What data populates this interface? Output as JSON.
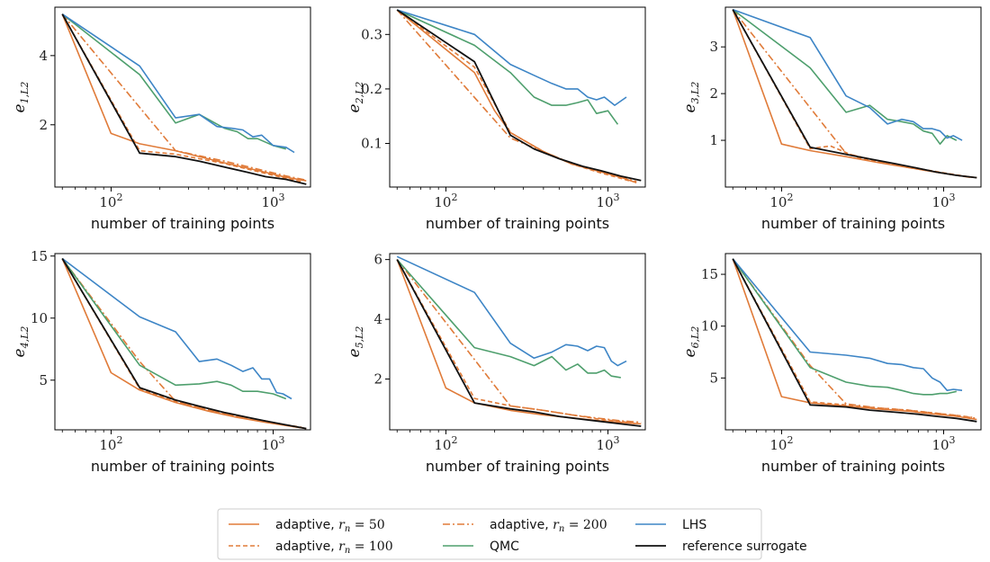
{
  "colors": {
    "adaptive": "#e07b39",
    "qmc": "#4e9f6d",
    "lhs": "#3d85c6",
    "ref": "#111111"
  },
  "legend": {
    "entries": [
      {
        "key": "a50",
        "label": "adaptive, ",
        "math": "r",
        "sub": "n",
        "eq": " = 50"
      },
      {
        "key": "a100",
        "label": "adaptive, ",
        "math": "r",
        "sub": "n",
        "eq": " = 100"
      },
      {
        "key": "a200",
        "label": "adaptive, ",
        "math": "r",
        "sub": "n",
        "eq": " = 200"
      },
      {
        "key": "qmc",
        "label": "QMC"
      },
      {
        "key": "lhs",
        "label": "LHS"
      },
      {
        "key": "ref",
        "label": "reference surrogate"
      }
    ]
  },
  "chart_data": [
    {
      "type": "line",
      "xscale": "log",
      "xlim": [
        45,
        1700
      ],
      "ylim": [
        0.2,
        5.4
      ],
      "xlabel": "number of training points",
      "ylabel_main": "e",
      "ylabel_sub": "1,L2",
      "xticks": [
        {
          "v": 100,
          "b": "10",
          "e": "2"
        },
        {
          "v": 1000,
          "b": "10",
          "e": "3"
        }
      ],
      "yticks": [
        2,
        4
      ],
      "series": [
        {
          "key": "a50",
          "x": [
            50,
            100,
            150,
            250,
            500,
            800,
            1200,
            1600
          ],
          "y": [
            5.2,
            1.75,
            1.45,
            1.25,
            0.9,
            0.68,
            0.48,
            0.38
          ]
        },
        {
          "key": "a100",
          "x": [
            50,
            150,
            250,
            500,
            800,
            1200,
            1500
          ],
          "y": [
            5.2,
            1.25,
            1.15,
            0.88,
            0.65,
            0.45,
            0.35
          ]
        },
        {
          "key": "a200",
          "x": [
            50,
            250,
            500,
            800,
            1200,
            1600
          ],
          "y": [
            5.2,
            1.25,
            0.95,
            0.72,
            0.52,
            0.4
          ]
        },
        {
          "key": "qmc",
          "x": [
            50,
            150,
            250,
            350,
            500,
            600,
            700,
            800,
            1000,
            1200
          ],
          "y": [
            5.2,
            3.45,
            2.05,
            2.3,
            1.9,
            1.8,
            1.6,
            1.6,
            1.4,
            1.3
          ]
        },
        {
          "key": "lhs",
          "x": [
            50,
            150,
            250,
            350,
            450,
            550,
            650,
            750,
            850,
            1000,
            1200,
            1350
          ],
          "y": [
            5.2,
            3.7,
            2.2,
            2.3,
            1.95,
            1.9,
            1.85,
            1.65,
            1.7,
            1.4,
            1.35,
            1.2
          ]
        },
        {
          "key": "ref",
          "x": [
            50,
            150,
            250,
            350,
            500,
            700,
            900,
            1200,
            1600
          ],
          "y": [
            5.2,
            1.18,
            1.08,
            0.95,
            0.78,
            0.62,
            0.5,
            0.42,
            0.28
          ]
        }
      ]
    },
    {
      "type": "line",
      "xscale": "log",
      "xlim": [
        45,
        1700
      ],
      "ylim": [
        0.02,
        0.35
      ],
      "xlabel": "number of training points",
      "ylabel_main": "e",
      "ylabel_sub": "2,L2",
      "xticks": [
        {
          "v": 100,
          "b": "10",
          "e": "2"
        },
        {
          "v": 1000,
          "b": "10",
          "e": "3"
        }
      ],
      "yticks": [
        0.1,
        0.2,
        0.3
      ],
      "series": [
        {
          "key": "a50",
          "x": [
            50,
            150,
            200,
            250,
            400,
            600,
            900,
            1200,
            1500
          ],
          "y": [
            0.345,
            0.23,
            0.16,
            0.12,
            0.085,
            0.062,
            0.048,
            0.038,
            0.028
          ]
        },
        {
          "key": "a100",
          "x": [
            50,
            150,
            250,
            400,
            600,
            900,
            1200,
            1400
          ],
          "y": [
            0.345,
            0.24,
            0.12,
            0.085,
            0.062,
            0.046,
            0.036,
            0.03
          ]
        },
        {
          "key": "a200",
          "x": [
            50,
            250,
            400,
            600,
            900,
            1200,
            1500
          ],
          "y": [
            0.345,
            0.11,
            0.085,
            0.063,
            0.048,
            0.038,
            0.03
          ]
        },
        {
          "key": "qmc",
          "x": [
            50,
            150,
            250,
            350,
            450,
            550,
            650,
            750,
            850,
            1000,
            1150
          ],
          "y": [
            0.345,
            0.28,
            0.23,
            0.185,
            0.17,
            0.17,
            0.175,
            0.18,
            0.155,
            0.16,
            0.135
          ]
        },
        {
          "key": "lhs",
          "x": [
            50,
            150,
            250,
            350,
            450,
            550,
            650,
            750,
            850,
            950,
            1100,
            1300
          ],
          "y": [
            0.345,
            0.3,
            0.245,
            0.225,
            0.21,
            0.2,
            0.2,
            0.185,
            0.18,
            0.185,
            0.17,
            0.185
          ]
        },
        {
          "key": "ref",
          "x": [
            50,
            150,
            250,
            350,
            500,
            700,
            900,
            1200,
            1600
          ],
          "y": [
            0.345,
            0.25,
            0.115,
            0.09,
            0.072,
            0.058,
            0.05,
            0.04,
            0.032
          ]
        }
      ]
    },
    {
      "type": "line",
      "xscale": "log",
      "xlim": [
        45,
        1700
      ],
      "ylim": [
        0.0,
        3.85
      ],
      "xlabel": "number of training points",
      "ylabel_main": "e",
      "ylabel_sub": "3,L2",
      "xticks": [
        {
          "v": 100,
          "b": "10",
          "e": "2"
        },
        {
          "v": 1000,
          "b": "10",
          "e": "3"
        }
      ],
      "yticks": [
        1,
        2,
        3
      ],
      "series": [
        {
          "key": "a50",
          "x": [
            50,
            100,
            150,
            250,
            400,
            600,
            900,
            1200,
            1600
          ],
          "y": [
            3.8,
            0.92,
            0.78,
            0.65,
            0.52,
            0.42,
            0.32,
            0.25,
            0.2
          ]
        },
        {
          "key": "a100",
          "x": [
            50,
            150,
            200,
            300,
            500,
            800,
            1200,
            1500
          ],
          "y": [
            3.8,
            0.82,
            0.88,
            0.62,
            0.48,
            0.36,
            0.26,
            0.21
          ]
        },
        {
          "key": "a200",
          "x": [
            50,
            250,
            400,
            600,
            900,
            1200,
            1500
          ],
          "y": [
            3.8,
            0.72,
            0.55,
            0.42,
            0.32,
            0.25,
            0.2
          ]
        },
        {
          "key": "qmc",
          "x": [
            50,
            150,
            250,
            350,
            450,
            550,
            650,
            750,
            850,
            950,
            1050,
            1200
          ],
          "y": [
            3.8,
            2.55,
            1.6,
            1.75,
            1.45,
            1.4,
            1.35,
            1.2,
            1.15,
            0.92,
            1.1,
            1.0
          ]
        },
        {
          "key": "lhs",
          "x": [
            50,
            150,
            250,
            350,
            450,
            550,
            650,
            750,
            850,
            950,
            1050,
            1150,
            1300
          ],
          "y": [
            3.8,
            3.2,
            1.95,
            1.7,
            1.35,
            1.45,
            1.4,
            1.25,
            1.25,
            1.2,
            1.05,
            1.1,
            1.0
          ]
        },
        {
          "key": "ref",
          "x": [
            50,
            150,
            250,
            350,
            500,
            700,
            900,
            1200,
            1600
          ],
          "y": [
            3.8,
            0.85,
            0.7,
            0.6,
            0.5,
            0.4,
            0.32,
            0.25,
            0.2
          ]
        }
      ]
    },
    {
      "type": "line",
      "xscale": "log",
      "xlim": [
        45,
        1700
      ],
      "ylim": [
        1.0,
        15.2
      ],
      "xlabel": "number of training points",
      "ylabel_main": "e",
      "ylabel_sub": "4,L2",
      "xticks": [
        {
          "v": 100,
          "b": "10",
          "e": "2"
        },
        {
          "v": 1000,
          "b": "10",
          "e": "3"
        }
      ],
      "yticks": [
        5,
        10,
        15
      ],
      "series": [
        {
          "key": "a50",
          "x": [
            50,
            100,
            150,
            250,
            400,
            600,
            900,
            1200,
            1600
          ],
          "y": [
            14.8,
            5.6,
            4.2,
            3.2,
            2.5,
            2.0,
            1.6,
            1.35,
            1.1
          ]
        },
        {
          "key": "a100",
          "x": [
            50,
            150,
            250,
            400,
            600,
            900,
            1200,
            1500
          ],
          "y": [
            14.8,
            4.3,
            3.3,
            2.6,
            2.1,
            1.7,
            1.4,
            1.2
          ]
        },
        {
          "key": "a200",
          "x": [
            50,
            150,
            250,
            400,
            600,
            900,
            1200,
            1600
          ],
          "y": [
            14.8,
            6.5,
            3.3,
            2.6,
            2.1,
            1.7,
            1.35,
            1.1
          ]
        },
        {
          "key": "qmc",
          "x": [
            50,
            150,
            250,
            350,
            450,
            550,
            650,
            800,
            1000,
            1200
          ],
          "y": [
            14.8,
            6.2,
            4.6,
            4.7,
            4.9,
            4.6,
            4.1,
            4.1,
            3.9,
            3.5
          ]
        },
        {
          "key": "lhs",
          "x": [
            50,
            150,
            250,
            350,
            450,
            550,
            650,
            750,
            850,
            950,
            1050,
            1150,
            1300
          ],
          "y": [
            14.8,
            10.1,
            8.9,
            6.5,
            6.7,
            6.2,
            5.7,
            6.0,
            5.1,
            5.1,
            4.0,
            3.9,
            3.5
          ]
        },
        {
          "key": "ref",
          "x": [
            50,
            150,
            250,
            350,
            500,
            700,
            900,
            1200,
            1600
          ],
          "y": [
            14.8,
            4.4,
            3.4,
            2.9,
            2.4,
            2.0,
            1.7,
            1.4,
            1.1
          ]
        }
      ]
    },
    {
      "type": "line",
      "xscale": "log",
      "xlim": [
        45,
        1700
      ],
      "ylim": [
        0.3,
        6.2
      ],
      "xlabel": "number of training points",
      "ylabel_main": "e",
      "ylabel_sub": "5,L2",
      "xticks": [
        {
          "v": 100,
          "b": "10",
          "e": "2"
        },
        {
          "v": 1000,
          "b": "10",
          "e": "3"
        }
      ],
      "yticks": [
        2,
        4,
        6
      ],
      "series": [
        {
          "key": "a50",
          "x": [
            50,
            100,
            150,
            250,
            400,
            600,
            900,
            1200,
            1600
          ],
          "y": [
            6.0,
            1.7,
            1.2,
            0.95,
            0.8,
            0.7,
            0.6,
            0.55,
            0.5
          ]
        },
        {
          "key": "a100",
          "x": [
            50,
            150,
            250,
            400,
            600,
            900,
            1200,
            1500
          ],
          "y": [
            6.0,
            1.35,
            1.1,
            0.95,
            0.8,
            0.65,
            0.58,
            0.5
          ]
        },
        {
          "key": "a200",
          "x": [
            50,
            250,
            400,
            600,
            900,
            1200,
            1600
          ],
          "y": [
            6.0,
            1.1,
            0.95,
            0.8,
            0.68,
            0.6,
            0.55
          ]
        },
        {
          "key": "qmc",
          "x": [
            50,
            150,
            250,
            350,
            450,
            550,
            650,
            750,
            850,
            950,
            1050,
            1200
          ],
          "y": [
            6.0,
            3.05,
            2.75,
            2.45,
            2.75,
            2.3,
            2.5,
            2.2,
            2.2,
            2.3,
            2.1,
            2.05
          ]
        },
        {
          "key": "lhs",
          "x": [
            50,
            150,
            250,
            350,
            450,
            550,
            650,
            750,
            850,
            950,
            1050,
            1150,
            1300
          ],
          "y": [
            6.1,
            4.9,
            3.2,
            2.7,
            2.9,
            3.15,
            3.1,
            2.95,
            3.1,
            3.05,
            2.6,
            2.45,
            2.6
          ]
        },
        {
          "key": "ref",
          "x": [
            50,
            150,
            250,
            350,
            500,
            700,
            900,
            1200,
            1600
          ],
          "y": [
            6.0,
            1.2,
            1.0,
            0.9,
            0.75,
            0.65,
            0.58,
            0.5,
            0.42
          ]
        }
      ]
    },
    {
      "type": "line",
      "xscale": "log",
      "xlim": [
        45,
        1700
      ],
      "ylim": [
        0.0,
        17.0
      ],
      "xlabel": "number of training points",
      "ylabel_main": "e",
      "ylabel_sub": "6,L2",
      "xticks": [
        {
          "v": 100,
          "b": "10",
          "e": "2"
        },
        {
          "v": 1000,
          "b": "10",
          "e": "3"
        }
      ],
      "yticks": [
        5,
        10,
        15
      ],
      "series": [
        {
          "key": "a50",
          "x": [
            50,
            100,
            150,
            250,
            400,
            600,
            900,
            1200,
            1600
          ],
          "y": [
            16.5,
            3.2,
            2.6,
            2.3,
            2.0,
            1.8,
            1.5,
            1.3,
            1.0
          ]
        },
        {
          "key": "a100",
          "x": [
            50,
            150,
            250,
            400,
            600,
            900,
            1200,
            1500
          ],
          "y": [
            16.5,
            2.7,
            2.4,
            2.1,
            1.9,
            1.6,
            1.4,
            1.2
          ]
        },
        {
          "key": "a200",
          "x": [
            50,
            150,
            250,
            400,
            600,
            900,
            1200,
            1600
          ],
          "y": [
            16.5,
            6.2,
            2.5,
            2.1,
            1.9,
            1.6,
            1.4,
            1.1
          ]
        },
        {
          "key": "qmc",
          "x": [
            50,
            150,
            250,
            350,
            450,
            550,
            650,
            750,
            850,
            950,
            1050,
            1200
          ],
          "y": [
            16.5,
            6.0,
            4.6,
            4.2,
            4.1,
            3.8,
            3.5,
            3.4,
            3.4,
            3.5,
            3.5,
            3.7
          ]
        },
        {
          "key": "lhs",
          "x": [
            50,
            150,
            250,
            350,
            450,
            550,
            650,
            750,
            850,
            950,
            1050,
            1150,
            1300
          ],
          "y": [
            16.5,
            7.5,
            7.2,
            6.9,
            6.4,
            6.3,
            6.0,
            5.9,
            5.0,
            4.6,
            3.8,
            3.9,
            3.8
          ]
        },
        {
          "key": "ref",
          "x": [
            50,
            150,
            250,
            350,
            500,
            700,
            900,
            1200,
            1600
          ],
          "y": [
            16.5,
            2.4,
            2.2,
            1.9,
            1.7,
            1.5,
            1.3,
            1.1,
            0.8
          ]
        }
      ]
    }
  ]
}
